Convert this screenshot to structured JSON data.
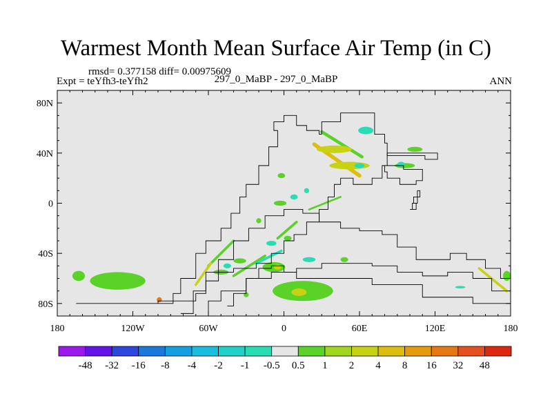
{
  "title": "Warmest Month Mean Surface Air Temp (in C)",
  "stats": "rmsd= 0.377158 diff= 0.00975609",
  "experiment": "Expt = teYfh3-teYfh2",
  "center_label": "297_0_MaBP - 297_0_MaBP",
  "period": "ANN",
  "chart_data": {
    "type": "heatmap",
    "title": "Warmest Month Mean Surface Air Temp (in C)",
    "x_ticks": [
      "180",
      "120W",
      "60W",
      "0",
      "60E",
      "120E",
      "180"
    ],
    "x_tick_values": [
      -180,
      -120,
      -60,
      0,
      60,
      120,
      180
    ],
    "y_ticks": [
      "80N",
      "40N",
      "0",
      "40S",
      "80S"
    ],
    "y_tick_values": [
      80,
      40,
      0,
      -40,
      -80
    ],
    "xlim": [
      -180,
      180
    ],
    "ylim": [
      -90,
      90
    ],
    "background_color": "#e6e6e6",
    "colorbar": {
      "labels": [
        "-48",
        "-32",
        "-16",
        "-8",
        "-4",
        "-2",
        "-1",
        "-0.5",
        "0.5",
        "1",
        "2",
        "4",
        "8",
        "16",
        "32",
        "48"
      ],
      "colors": [
        "#9a19ea",
        "#6414e6",
        "#2d46dc",
        "#1a78dc",
        "#14a0e0",
        "#19bede",
        "#1ed2c8",
        "#28dcb4",
        "#e6e6e6",
        "#5ad228",
        "#a0d61e",
        "#c8d214",
        "#dcbe0f",
        "#e69c0a",
        "#e67814",
        "#e6501e",
        "#dc280f"
      ]
    },
    "anomaly_regions": [
      {
        "lon": -163,
        "lat": -58,
        "rx": 5,
        "ry": 4,
        "value": 0.7
      },
      {
        "lon": -132,
        "lat": -62,
        "rx": 22,
        "ry": 7,
        "value": 0.7
      },
      {
        "lon": 177,
        "lat": -58,
        "rx": 3,
        "ry": 4,
        "value": 0.7
      },
      {
        "lon": 15,
        "lat": -70,
        "rx": 24,
        "ry": 8,
        "value": 0.7
      },
      {
        "lon": 12,
        "lat": -71,
        "rx": 6,
        "ry": 3,
        "value": 3
      },
      {
        "lon": -8,
        "lat": -51,
        "rx": 9,
        "ry": 4,
        "value": 0.7
      },
      {
        "lon": -5,
        "lat": -51,
        "rx": 3,
        "ry": 2,
        "value": 3
      },
      {
        "lon": 40,
        "lat": 43,
        "rx": 14,
        "ry": 3,
        "value": 3
      },
      {
        "lon": 52,
        "lat": 30,
        "rx": 16,
        "ry": 3,
        "value": 3
      },
      {
        "lon": 65,
        "lat": 58,
        "rx": 6,
        "ry": 3,
        "value": -0.7
      },
      {
        "lon": 60,
        "lat": 30,
        "rx": 4,
        "ry": 2,
        "value": -0.7
      },
      {
        "lon": 96,
        "lat": 30,
        "rx": 8,
        "ry": 2,
        "value": 0.7
      },
      {
        "lon": 93,
        "lat": 31,
        "rx": 3,
        "ry": 2,
        "value": -0.7
      },
      {
        "lon": 104,
        "lat": 43,
        "rx": 6,
        "ry": 2,
        "value": 0.7
      },
      {
        "lon": -35,
        "lat": -46,
        "rx": 5,
        "ry": 2,
        "value": 0.7
      },
      {
        "lon": -50,
        "lat": -55,
        "rx": 6,
        "ry": 2,
        "value": 0.7
      },
      {
        "lon": -45,
        "lat": -50,
        "rx": 3,
        "ry": 2,
        "value": -0.7
      },
      {
        "lon": -10,
        "lat": -32,
        "rx": 4,
        "ry": 2,
        "value": -0.7
      },
      {
        "lon": 3,
        "lat": -28,
        "rx": 3,
        "ry": 2,
        "value": 0.7
      },
      {
        "lon": -3,
        "lat": 0,
        "rx": 5,
        "ry": 2,
        "value": 0.7
      },
      {
        "lon": 8,
        "lat": 5,
        "rx": 3,
        "ry": 2,
        "value": -0.7
      },
      {
        "lon": -2,
        "lat": 22,
        "rx": 3,
        "ry": 2,
        "value": 0.7
      },
      {
        "lon": 20,
        "lat": -45,
        "rx": 5,
        "ry": 2,
        "value": -0.7
      },
      {
        "lon": 48,
        "lat": -45,
        "rx": 3,
        "ry": 2,
        "value": 0.7
      },
      {
        "lon": 140,
        "lat": -67,
        "rx": 4,
        "ry": 1,
        "value": -0.7
      },
      {
        "lon": -99,
        "lat": -77,
        "rx": 2,
        "ry": 2,
        "value": 16
      },
      {
        "lon": -20,
        "lat": -14,
        "rx": 2,
        "ry": 2,
        "value": 0.7
      },
      {
        "lon": 18,
        "lat": 10,
        "rx": 2,
        "ry": 2,
        "value": -0.7
      },
      {
        "lon": -30,
        "lat": -73,
        "rx": 2,
        "ry": 2,
        "value": 0.7
      }
    ],
    "anomaly_bands": [
      {
        "from": [
          24,
          47
        ],
        "to": [
          60,
          22
        ],
        "width": 3,
        "value": 4
      },
      {
        "from": [
          30,
          57
        ],
        "to": [
          62,
          37
        ],
        "width": 2.5,
        "value": 0.7
      },
      {
        "from": [
          -60,
          -50
        ],
        "to": [
          -40,
          -30
        ],
        "width": 2,
        "value": 0.7
      },
      {
        "from": [
          -70,
          -65
        ],
        "to": [
          -58,
          -48
        ],
        "width": 2,
        "value": 3
      },
      {
        "from": [
          -40,
          -58
        ],
        "to": [
          -15,
          -42
        ],
        "width": 2,
        "value": 0.7
      },
      {
        "from": [
          -22,
          -48
        ],
        "to": [
          -2,
          -38
        ],
        "width": 2,
        "value": -0.7
      },
      {
        "from": [
          -5,
          -28
        ],
        "to": [
          10,
          -15
        ],
        "width": 2,
        "value": 0.7
      },
      {
        "from": [
          155,
          -52
        ],
        "to": [
          177,
          -70
        ],
        "width": 2,
        "value": 3
      },
      {
        "from": [
          20,
          -5
        ],
        "to": [
          45,
          5
        ],
        "width": 1.5,
        "value": 0.7
      }
    ],
    "outline_paths": [
      [
        [
          -165,
          -80
        ],
        [
          -95,
          -80
        ],
        [
          -88,
          -72
        ],
        [
          -82,
          -60
        ],
        [
          -70,
          -40
        ],
        [
          -62,
          -30
        ],
        [
          -50,
          -20
        ],
        [
          -42,
          -8
        ],
        [
          -35,
          5
        ],
        [
          -30,
          15
        ],
        [
          -20,
          30
        ],
        [
          -12,
          45
        ],
        [
          -5,
          58
        ],
        [
          -8,
          65
        ],
        [
          0,
          70
        ],
        [
          10,
          62
        ],
        [
          18,
          58
        ],
        [
          28,
          55
        ],
        [
          30,
          65
        ],
        [
          45,
          72
        ],
        [
          60,
          72
        ],
        [
          72,
          66
        ],
        [
          72,
          55
        ],
        [
          80,
          48
        ],
        [
          82,
          30
        ],
        [
          78,
          20
        ],
        [
          70,
          15
        ],
        [
          55,
          20
        ],
        [
          45,
          15
        ],
        [
          40,
          5
        ],
        [
          35,
          -5
        ],
        [
          28,
          -15
        ],
        [
          18,
          -25
        ],
        [
          8,
          -30
        ],
        [
          0,
          -40
        ],
        [
          -10,
          -48
        ],
        [
          -22,
          -52
        ],
        [
          -40,
          -55
        ],
        [
          -52,
          -62
        ],
        [
          -62,
          -72
        ],
        [
          -70,
          -78
        ],
        [
          -100,
          -80
        ]
      ],
      [
        [
          -82,
          -88
        ],
        [
          -72,
          -70
        ],
        [
          -62,
          -55
        ],
        [
          -52,
          -45
        ],
        [
          -40,
          -30
        ],
        [
          -28,
          -20
        ],
        [
          -15,
          -10
        ],
        [
          0,
          -5
        ],
        [
          15,
          -8
        ],
        [
          28,
          -15
        ],
        [
          45,
          -20
        ],
        [
          60,
          -22
        ],
        [
          78,
          -25
        ],
        [
          90,
          -35
        ],
        [
          105,
          -45
        ],
        [
          120,
          -45
        ],
        [
          132,
          -40
        ],
        [
          145,
          -45
        ],
        [
          160,
          -52
        ],
        [
          172,
          -60
        ],
        [
          180,
          -70
        ],
        [
          180,
          -80
        ],
        [
          150,
          -75
        ],
        [
          110,
          -65
        ],
        [
          70,
          -60
        ],
        [
          40,
          -60
        ],
        [
          10,
          -55
        ],
        [
          -10,
          -60
        ],
        [
          -30,
          -70
        ],
        [
          -50,
          -78
        ],
        [
          -60,
          -88
        ]
      ],
      [
        [
          -45,
          -82
        ],
        [
          -40,
          -72
        ],
        [
          -30,
          -60
        ],
        [
          -20,
          -52
        ],
        [
          -10,
          -50
        ],
        [
          0,
          -55
        ],
        [
          10,
          -52
        ],
        [
          30,
          -48
        ],
        [
          50,
          -48
        ],
        [
          70,
          -50
        ],
        [
          90,
          -55
        ],
        [
          110,
          -58
        ],
        [
          130,
          -55
        ],
        [
          150,
          -60
        ],
        [
          165,
          -70
        ],
        [
          180,
          -80
        ]
      ],
      [
        [
          82,
          40
        ],
        [
          112,
          40
        ],
        [
          122,
          35
        ],
        [
          112,
          38
        ],
        [
          90,
          38
        ],
        [
          82,
          40
        ]
      ],
      [
        [
          80,
          30
        ],
        [
          95,
          27
        ],
        [
          110,
          18
        ],
        [
          105,
          15
        ],
        [
          92,
          20
        ],
        [
          82,
          25
        ],
        [
          80,
          30
        ]
      ],
      [
        [
          100,
          -5
        ],
        [
          105,
          0
        ],
        [
          103,
          5
        ],
        [
          108,
          10
        ],
        [
          106,
          0
        ],
        [
          102,
          -5
        ]
      ]
    ]
  }
}
